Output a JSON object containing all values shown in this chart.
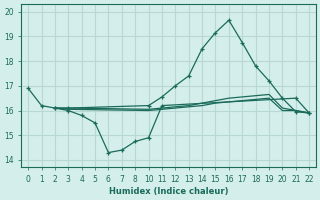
{
  "xlabel": "Humidex (Indice chaleur)",
  "background_color": "#d4eeeb",
  "grid_color": "#b8d8d4",
  "line_color": "#1a6b5a",
  "xtick_labels": [
    "0",
    "1",
    "2",
    "3",
    "4",
    "5",
    "6",
    "7",
    "8",
    "10",
    "11",
    "12",
    "13",
    "14",
    "15",
    "16",
    "17",
    "18",
    "19",
    "20",
    "21",
    "22"
  ],
  "yticks": [
    14,
    15,
    16,
    17,
    18,
    19,
    20
  ],
  "ylim": [
    13.7,
    20.3
  ],
  "series": [
    {
      "xi": [
        0,
        1,
        2,
        3,
        9,
        10,
        11,
        12,
        13,
        14,
        15,
        16,
        17,
        18,
        19,
        20,
        21
      ],
      "y": [
        16.9,
        16.2,
        16.1,
        16.1,
        16.2,
        16.55,
        17.0,
        17.4,
        18.5,
        19.15,
        19.65,
        18.75,
        17.8,
        17.2,
        16.5,
        15.95,
        15.9
      ],
      "has_marker": true
    },
    {
      "xi": [
        2,
        3,
        4,
        5,
        6,
        7,
        8,
        9,
        10,
        20,
        21
      ],
      "y": [
        16.1,
        16.0,
        15.8,
        15.5,
        14.3,
        14.4,
        14.75,
        14.9,
        16.2,
        16.5,
        15.9
      ],
      "has_marker": true
    },
    {
      "xi": [
        2,
        3,
        9,
        10,
        11,
        12,
        13,
        14,
        15,
        16,
        17,
        18,
        19,
        20,
        21
      ],
      "y": [
        16.1,
        16.1,
        16.05,
        16.1,
        16.15,
        16.2,
        16.3,
        16.4,
        16.5,
        16.55,
        16.6,
        16.65,
        16.1,
        16.0,
        15.9
      ],
      "has_marker": false
    },
    {
      "xi": [
        2,
        3,
        9,
        10,
        11,
        12,
        13,
        14,
        15,
        16,
        17,
        18,
        19,
        20,
        21
      ],
      "y": [
        16.1,
        16.05,
        16.0,
        16.05,
        16.1,
        16.15,
        16.2,
        16.3,
        16.35,
        16.4,
        16.45,
        16.5,
        16.0,
        16.0,
        15.9
      ],
      "has_marker": false
    }
  ]
}
